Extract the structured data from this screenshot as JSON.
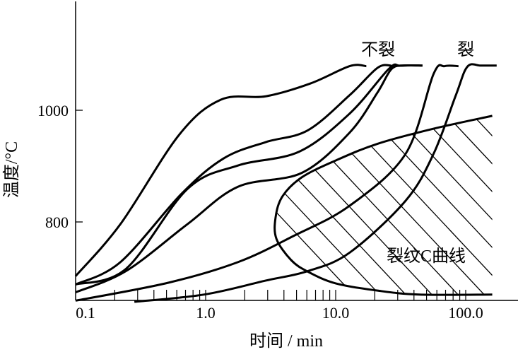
{
  "chart_data": {
    "type": "line",
    "title": "",
    "xlabel": "时间 / min",
    "ylabel": "温度/°C",
    "xscale": "log",
    "xlim": [
      0.1,
      250
    ],
    "ylim": [
      660,
      1195
    ],
    "xticks": [
      {
        "value": 0.1,
        "label": "0.1"
      },
      {
        "value": 1,
        "label": "1.0"
      },
      {
        "value": 10,
        "label": "10.0"
      },
      {
        "value": 100,
        "label": "100.0"
      }
    ],
    "yticks": [
      {
        "value": 800,
        "label": "800"
      },
      {
        "value": 1000,
        "label": "1000"
      }
    ],
    "grid": false,
    "annotations": {
      "no_crack": "不裂",
      "crack": "裂",
      "c_curve": "裂纹C曲线"
    },
    "series": [
      {
        "name": "cooling-curve-1",
        "group": "no_crack",
        "points": [
          [
            0.1,
            703
          ],
          [
            0.221,
            796
          ],
          [
            0.625,
            956
          ],
          [
            1.31,
            1019
          ],
          [
            2.9,
            1025
          ],
          [
            6.4,
            1048
          ],
          [
            12.8,
            1079
          ],
          [
            17.2,
            1079
          ]
        ]
      },
      {
        "name": "cooling-curve-2",
        "group": "no_crack",
        "points": [
          [
            0.1,
            688
          ],
          [
            0.221,
            728
          ],
          [
            0.656,
            851
          ],
          [
            1.38,
            914
          ],
          [
            2.9,
            943
          ],
          [
            6.1,
            964
          ],
          [
            12.8,
            1027
          ],
          [
            21,
            1076
          ],
          [
            26.9,
            1080
          ]
        ]
      },
      {
        "name": "cooling-curve-3",
        "group": "no_crack",
        "points": [
          [
            0.1,
            688
          ],
          [
            0.244,
            716
          ],
          [
            0.724,
            859
          ],
          [
            1.77,
            901
          ],
          [
            5.25,
            926
          ],
          [
            12.8,
            994
          ],
          [
            25.6,
            1074
          ],
          [
            31.3,
            1080
          ],
          [
            46.5,
            1080
          ]
        ]
      },
      {
        "name": "cooling-curve-4",
        "group": "no_crack",
        "points": [
          [
            0.1,
            674
          ],
          [
            0.244,
            712
          ],
          [
            0.724,
            796
          ],
          [
            1.77,
            863
          ],
          [
            5.5,
            888
          ],
          [
            12.8,
            960
          ],
          [
            21,
            1032
          ],
          [
            26.9,
            1074
          ],
          [
            34,
            1080
          ],
          [
            46.5,
            1080
          ]
        ]
      },
      {
        "name": "cooling-curve-5",
        "group": "crack",
        "points": [
          [
            0.1,
            659
          ],
          [
            0.513,
            691
          ],
          [
            1.77,
            728
          ],
          [
            4.75,
            775
          ],
          [
            12.8,
            829
          ],
          [
            34.5,
            922
          ],
          [
            56.6,
            1065
          ],
          [
            69,
            1079
          ],
          [
            88,
            1079
          ]
        ]
      },
      {
        "name": "cooling-curve-6",
        "group": "crack",
        "points": [
          [
            0.283,
            657
          ],
          [
            0.975,
            670
          ],
          [
            2.9,
            695
          ],
          [
            6.1,
            712
          ],
          [
            12.8,
            745
          ],
          [
            34.5,
            838
          ],
          [
            56.6,
            922
          ],
          [
            84,
            1027
          ],
          [
            103,
            1078
          ],
          [
            131,
            1080
          ],
          [
            173,
            1080
          ]
        ]
      }
    ],
    "crack_c_curve": {
      "points": [
        [
          160,
          990
        ],
        [
          56.6,
          967
        ],
        [
          21,
          940
        ],
        [
          10,
          910
        ],
        [
          5.5,
          880
        ],
        [
          3.9,
          846
        ],
        [
          3.45,
          808
        ],
        [
          3.5,
          770
        ],
        [
          4.53,
          732
        ],
        [
          6.1,
          711
        ],
        [
          10,
          690
        ],
        [
          21,
          677
        ],
        [
          44,
          670
        ],
        [
          160,
          670
        ]
      ]
    }
  }
}
